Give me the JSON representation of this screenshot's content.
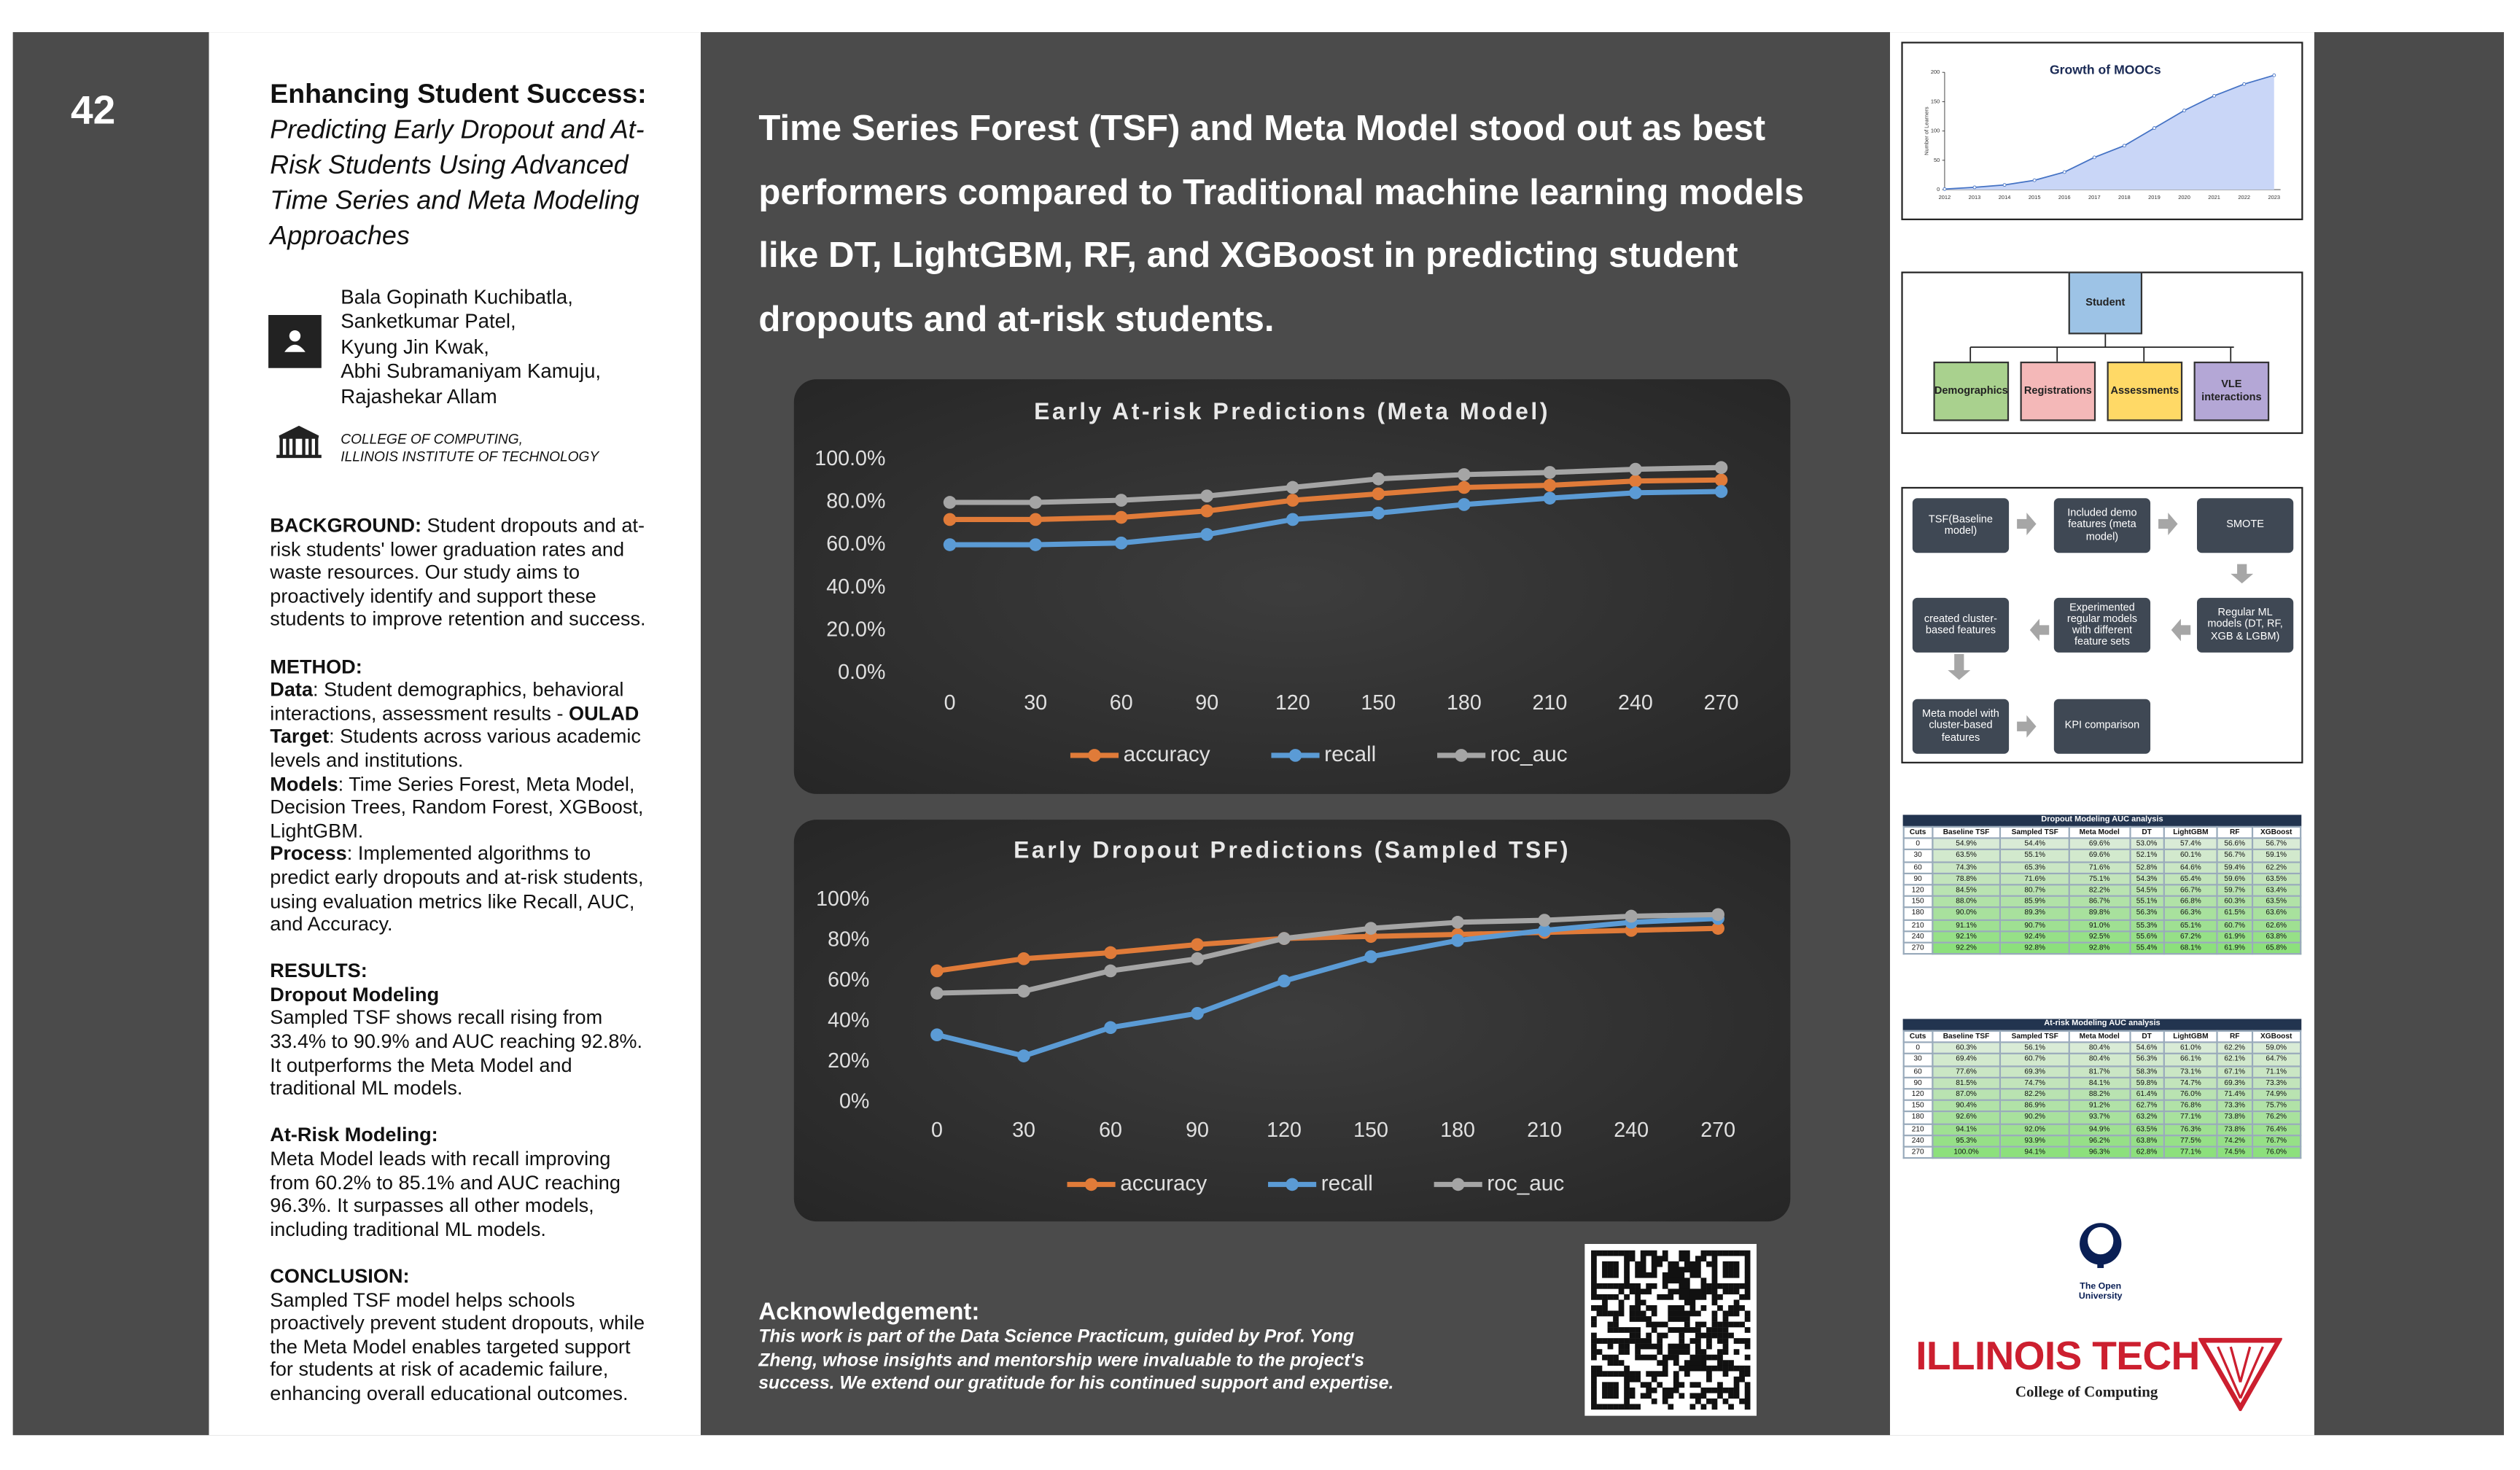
{
  "poster": {
    "number": "42",
    "title": "Enhancing Student Success:",
    "subtitle": "Predicting Early Dropout and At-Risk Students Using Advanced Time Series and Meta Modeling Approaches",
    "authors": [
      "Bala Gopinath Kuchibatla,",
      "Sanketkumar Patel,",
      "Kyung Jin Kwak,",
      "Abhi Subramaniyam Kamuju,",
      "Rajashekar Allam"
    ],
    "affiliation": [
      "COLLEGE OF COMPUTING,",
      "ILLINOIS INSTITUTE OF TECHNOLOGY"
    ],
    "background": {
      "label": "BACKGROUND:",
      "text": " Student dropouts and at-risk students' lower graduation rates and waste resources. Our study aims to proactively identify and support these students to improve retention and success."
    },
    "method": {
      "heading": "METHOD:",
      "items": [
        {
          "label": "Data",
          "text": ": Student demographics, behavioral interactions, assessment results - ",
          "strong": "OULAD"
        },
        {
          "label": "Target",
          "text": ": Students across various academic levels and institutions."
        },
        {
          "label": "Models",
          "text": ": Time Series Forest, Meta Model, Decision Trees, Random Forest, XGBoost, LightGBM."
        },
        {
          "label": "Process",
          "text": ": Implemented algorithms to predict early dropouts and at-risk students, using evaluation metrics like Recall, AUC, and Accuracy."
        }
      ]
    },
    "results": {
      "heading": "RESULTS:",
      "items": [
        {
          "label": "Dropout Modeling",
          "text": "Sampled TSF shows recall rising from 33.4% to 90.9% and AUC reaching 92.8%. It outperforms the Meta Model and traditional ML models."
        },
        {
          "label": "At-Risk Modeling:",
          "text": "Meta Model leads with recall improving from 60.2% to 85.1% and AUC reaching 96.3%. It surpasses all other models, including traditional ML models."
        }
      ]
    },
    "conclusion": {
      "heading": "CONCLUSION:",
      "text": "Sampled TSF model helps schools proactively prevent student dropouts, while the Meta Model enables targeted support for students at risk of academic failure, enhancing overall educational outcomes."
    },
    "headline": "Time Series Forest (TSF) and Meta Model stood out as best performers compared to Traditional machine learning models like DT, LightGBM, RF, and XGBoost in predicting student dropouts and at-risk students.",
    "acknowledgement": {
      "heading": "Acknowledgement:",
      "text": "This work is part of the Data Science Practicum, guided by Prof. Yong Zheng, whose insights and mentorship were invaluable to the project's success. We extend our gratitude for his continued support and expertise."
    },
    "logos": {
      "open_university": [
        "The Open",
        "University"
      ],
      "illinois": "ILLINOIS TECH",
      "college": "College of Computing"
    }
  },
  "chart_data": [
    {
      "type": "line",
      "title": "Early At-risk Predictions (Meta Model)",
      "categories": [
        0,
        30,
        60,
        90,
        120,
        150,
        180,
        210,
        240,
        270
      ],
      "series": [
        {
          "name": "accuracy",
          "color": "#e07b39",
          "values": [
            72,
            72,
            73,
            76,
            81,
            84,
            87,
            88,
            90,
            90.5
          ]
        },
        {
          "name": "recall",
          "color": "#5b9bd5",
          "values": [
            60.2,
            60.2,
            61,
            65,
            72,
            75,
            79,
            82,
            84.5,
            85.1
          ]
        },
        {
          "name": "roc_auc",
          "color": "#a5a5a5",
          "values": [
            80,
            80,
            81,
            83,
            87,
            91,
            93,
            94,
            95.5,
            96.3
          ]
        }
      ],
      "ylim": [
        0,
        100
      ],
      "yticks": [
        {
          "value": 0,
          "label": "0.0%"
        },
        {
          "value": 20,
          "label": "20.0%"
        },
        {
          "value": 40,
          "label": "40.0%"
        },
        {
          "value": 60,
          "label": "60.0%"
        },
        {
          "value": 80,
          "label": "80.0%"
        },
        {
          "value": 100,
          "label": "100.0%"
        }
      ],
      "grid": false,
      "legend": "bottom"
    },
    {
      "type": "line",
      "title": "Early Dropout Predictions (Sampled TSF)",
      "categories": [
        0,
        30,
        60,
        90,
        120,
        150,
        180,
        210,
        240,
        270
      ],
      "series": [
        {
          "name": "accuracy",
          "color": "#e07b39",
          "values": [
            65,
            71,
            74,
            78,
            81,
            82,
            83,
            84,
            85,
            86
          ]
        },
        {
          "name": "recall",
          "color": "#5b9bd5",
          "values": [
            33.4,
            23,
            37,
            44,
            60,
            72,
            80,
            85,
            89,
            90.9
          ]
        },
        {
          "name": "roc_auc",
          "color": "#a5a5a5",
          "values": [
            54,
            55,
            65,
            71,
            81,
            86,
            89,
            90,
            92,
            92.8
          ]
        }
      ],
      "ylim": [
        0,
        100
      ],
      "yticks": [
        {
          "value": 0,
          "label": "0%"
        },
        {
          "value": 20,
          "label": "20%"
        },
        {
          "value": 40,
          "label": "40%"
        },
        {
          "value": 60,
          "label": "60%"
        },
        {
          "value": 80,
          "label": "80%"
        },
        {
          "value": 100,
          "label": "100%"
        }
      ],
      "grid": false,
      "legend": "bottom"
    },
    {
      "type": "area",
      "title": "Growth of MOOCs",
      "y_label": "Number of Learners",
      "categories": [
        2012,
        2013,
        2014,
        2015,
        2016,
        2017,
        2018,
        2019,
        2020,
        2021,
        2022,
        2023
      ],
      "values": [
        1,
        4,
        8,
        16,
        30,
        55,
        75,
        105,
        135,
        160,
        180,
        195
      ],
      "color": "#4472c4",
      "ylim": [
        0,
        200
      ],
      "yticks": [
        0,
        50,
        100,
        150,
        200
      ],
      "grid": false
    }
  ],
  "diagram": {
    "root": "Student",
    "children": [
      "Demographics",
      "Registrations",
      "Assessments",
      "VLE interactions"
    ]
  },
  "flowchart": {
    "nodes": [
      "TSF(Baseline model)",
      "Included demo features (meta model)",
      "SMOTE",
      "Regular ML models (DT, RF, XGB & LGBM)",
      "Experimented regular models with different feature sets",
      "created cluster-based features",
      "Meta model with cluster-based features",
      "KPI comparison"
    ]
  },
  "tables": [
    {
      "title": "Dropout Modeling AUC analysis",
      "columns": [
        "Cuts",
        "Baseline TSF",
        "Sampled TSF",
        "Meta Model",
        "DT",
        "LightGBM",
        "RF",
        "XGBoost"
      ],
      "rows": [
        [
          "0",
          "54.9%",
          "54.4%",
          "69.6%",
          "53.0%",
          "57.4%",
          "56.6%",
          "56.7%"
        ],
        [
          "30",
          "63.5%",
          "55.1%",
          "69.6%",
          "52.1%",
          "60.1%",
          "56.7%",
          "59.1%"
        ],
        [
          "60",
          "74.3%",
          "65.3%",
          "71.6%",
          "52.8%",
          "64.6%",
          "59.4%",
          "62.2%"
        ],
        [
          "90",
          "78.8%",
          "71.6%",
          "75.1%",
          "54.3%",
          "65.4%",
          "59.6%",
          "63.5%"
        ],
        [
          "120",
          "84.5%",
          "80.7%",
          "82.2%",
          "54.5%",
          "66.7%",
          "59.7%",
          "63.4%"
        ],
        [
          "150",
          "88.0%",
          "85.9%",
          "86.7%",
          "55.1%",
          "66.8%",
          "60.3%",
          "63.5%"
        ],
        [
          "180",
          "90.0%",
          "89.3%",
          "89.8%",
          "56.3%",
          "66.3%",
          "61.5%",
          "63.6%"
        ],
        [
          "210",
          "91.1%",
          "90.7%",
          "91.0%",
          "55.3%",
          "65.1%",
          "60.7%",
          "62.6%"
        ],
        [
          "240",
          "92.1%",
          "92.4%",
          "92.5%",
          "55.6%",
          "67.2%",
          "61.9%",
          "63.8%"
        ],
        [
          "270",
          "92.2%",
          "92.8%",
          "92.8%",
          "55.4%",
          "68.1%",
          "61.9%",
          "65.8%"
        ]
      ]
    },
    {
      "title": "At-risk Modeling AUC analysis",
      "columns": [
        "Cuts",
        "Baseline TSF",
        "Sampled TSF",
        "Meta Model",
        "DT",
        "LightGBM",
        "RF",
        "XGBoost"
      ],
      "rows": [
        [
          "0",
          "60.3%",
          "56.1%",
          "80.4%",
          "54.6%",
          "61.0%",
          "62.2%",
          "59.0%"
        ],
        [
          "30",
          "69.4%",
          "60.7%",
          "80.4%",
          "56.3%",
          "66.1%",
          "62.1%",
          "64.7%"
        ],
        [
          "60",
          "77.6%",
          "69.3%",
          "81.7%",
          "58.3%",
          "73.1%",
          "67.1%",
          "71.1%"
        ],
        [
          "90",
          "81.5%",
          "74.7%",
          "84.1%",
          "59.8%",
          "74.7%",
          "69.3%",
          "73.3%"
        ],
        [
          "120",
          "87.0%",
          "82.2%",
          "88.2%",
          "61.4%",
          "76.0%",
          "71.4%",
          "74.9%"
        ],
        [
          "150",
          "90.4%",
          "86.9%",
          "91.2%",
          "62.7%",
          "76.8%",
          "73.3%",
          "75.7%"
        ],
        [
          "180",
          "92.6%",
          "90.2%",
          "93.7%",
          "63.2%",
          "77.1%",
          "73.8%",
          "76.2%"
        ],
        [
          "210",
          "94.1%",
          "92.0%",
          "94.9%",
          "63.5%",
          "76.3%",
          "73.8%",
          "76.4%"
        ],
        [
          "240",
          "95.3%",
          "93.9%",
          "96.2%",
          "63.8%",
          "77.5%",
          "74.2%",
          "76.7%"
        ],
        [
          "270",
          "100.0%",
          "94.1%",
          "96.3%",
          "62.8%",
          "77.1%",
          "74.5%",
          "76.0%"
        ]
      ]
    }
  ]
}
